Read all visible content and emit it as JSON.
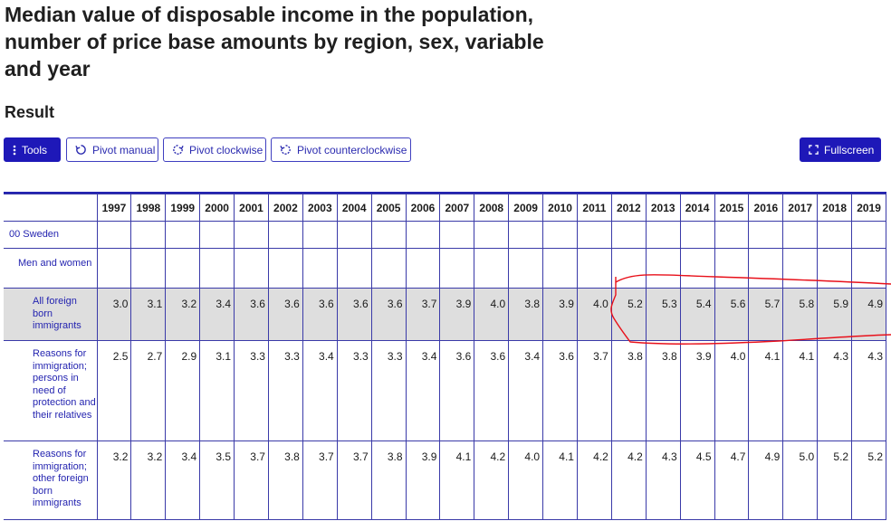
{
  "title": "Median value of disposable income in the population, number of price base amounts by region, sex, variable and year",
  "result_heading": "Result",
  "toolbar": {
    "tools": "Tools",
    "pivot_manual": "Pivot manual",
    "pivot_clockwise": "Pivot clockwise",
    "pivot_counterclockwise": "Pivot counterclockwise",
    "fullscreen": "Fullscreen"
  },
  "table": {
    "years": [
      "1997",
      "1998",
      "1999",
      "2000",
      "2001",
      "2002",
      "2003",
      "2004",
      "2005",
      "2006",
      "2007",
      "2008",
      "2009",
      "2010",
      "2011",
      "2012",
      "2013",
      "2014",
      "2015",
      "2016",
      "2017",
      "2018",
      "2019"
    ],
    "region": "00 Sweden",
    "sex": "Men and women",
    "rows": [
      {
        "label": "All foreign born immigrants",
        "values": [
          "3.0",
          "3.1",
          "3.2",
          "3.4",
          "3.6",
          "3.6",
          "3.6",
          "3.6",
          "3.6",
          "3.7",
          "3.9",
          "4.0",
          "3.8",
          "3.9",
          "4.0",
          "5.2",
          "5.3",
          "5.4",
          "5.6",
          "5.7",
          "5.8",
          "5.9",
          "4.9"
        ]
      },
      {
        "label": "Reasons for immigration; persons in need of protection and their relatives",
        "values": [
          "2.5",
          "2.7",
          "2.9",
          "3.1",
          "3.3",
          "3.3",
          "3.4",
          "3.3",
          "3.3",
          "3.4",
          "3.6",
          "3.6",
          "3.4",
          "3.6",
          "3.7",
          "3.8",
          "3.8",
          "3.9",
          "4.0",
          "4.1",
          "4.1",
          "4.3",
          "4.3"
        ]
      },
      {
        "label": "Reasons for immigration; other foreign born immigrants",
        "values": [
          "3.2",
          "3.2",
          "3.4",
          "3.5",
          "3.7",
          "3.8",
          "3.7",
          "3.7",
          "3.8",
          "3.9",
          "4.1",
          "4.2",
          "4.0",
          "4.1",
          "4.2",
          "4.2",
          "4.3",
          "4.5",
          "4.7",
          "4.9",
          "5.0",
          "5.2",
          "5.2"
        ]
      }
    ]
  },
  "colors": {
    "accent": "#1e18b8",
    "link_text": "#2424b0",
    "highlight_row": "#dedede",
    "annotation": "#e8101a"
  }
}
